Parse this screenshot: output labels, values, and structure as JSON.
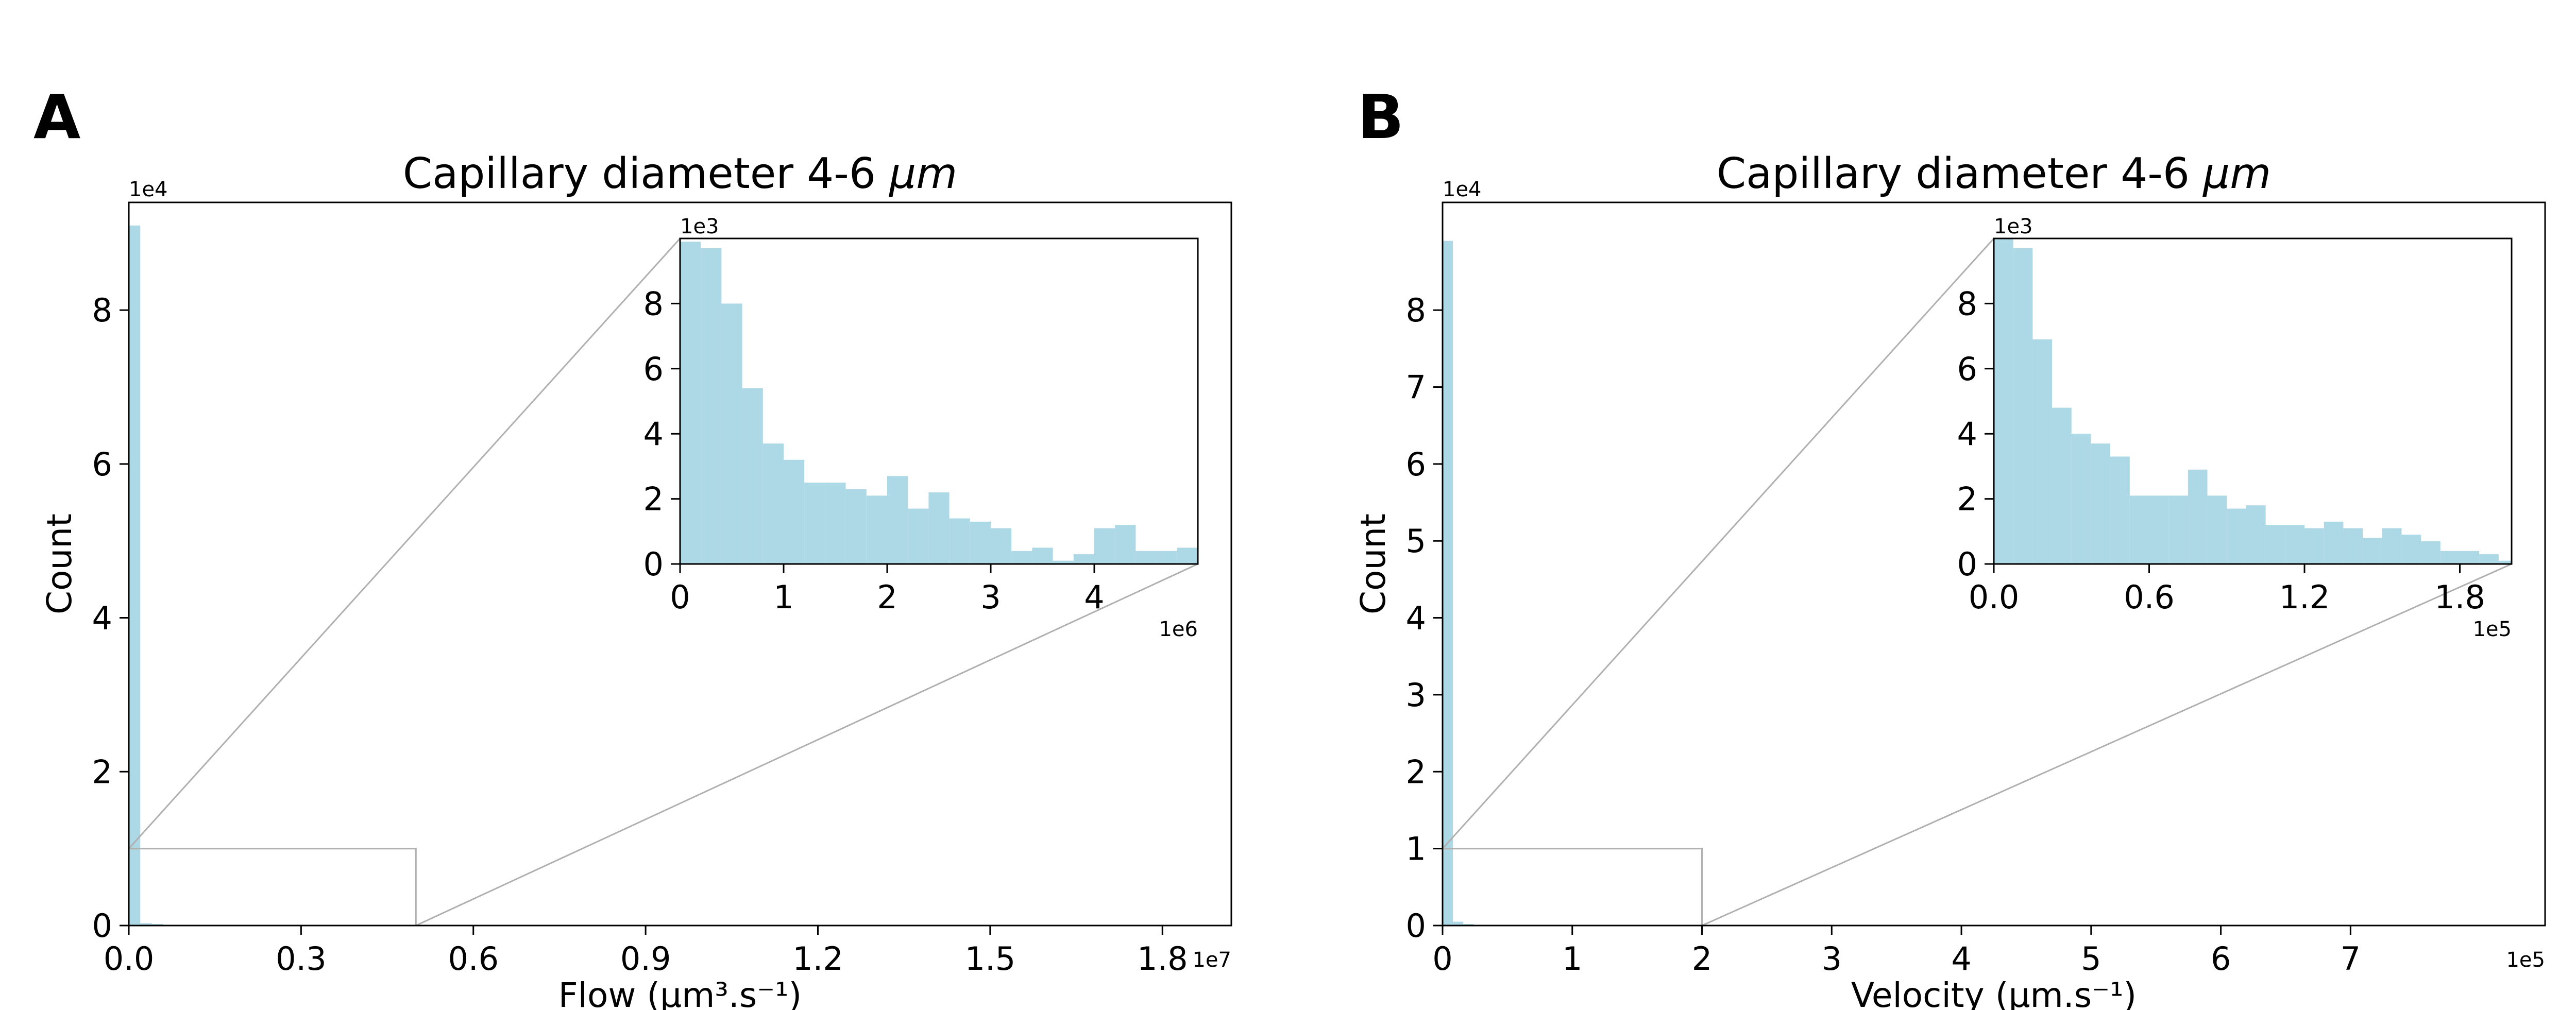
{
  "colors": {
    "bar": "#add8e6",
    "zoom_indicator": "#b0b0b0",
    "axes": "#000000"
  },
  "chart_data": [
    {
      "panel_label": "A",
      "type": "bar",
      "title": "Capillary diameter 4-6",
      "title_unit": "μm",
      "xlabel": "Flow (μm³.s⁻¹)",
      "ylabel": "Count",
      "x_offset_text": "1e7",
      "y_offset_text": "1e4",
      "xlim": [
        0,
        1.92
      ],
      "ylim": [
        0,
        9.4
      ],
      "xticks": [
        0.0,
        0.3,
        0.6,
        0.9,
        1.2,
        1.5,
        1.8
      ],
      "xtick_labels": [
        "0.0",
        "0.3",
        "0.6",
        "0.9",
        "1.2",
        "1.5",
        "1.8"
      ],
      "yticks": [
        0,
        2,
        4,
        6,
        8
      ],
      "ytick_labels": [
        "0",
        "2",
        "4",
        "6",
        "8"
      ],
      "bin_width": 0.02,
      "values": [
        9.1,
        0.03,
        0.02,
        0.01,
        0.01,
        0.01,
        0.005,
        0.005,
        0.005,
        0.005,
        0.004,
        0.003,
        0.002,
        0.002,
        0.002,
        0.001,
        0.001,
        0.001,
        0.001,
        0.001
      ],
      "zoom_region": {
        "x": [
          0,
          0.5
        ],
        "y": [
          0,
          1.0
        ]
      },
      "inset": {
        "x_offset_text": "1e6",
        "y_offset_text": "1e3",
        "xlim": [
          0,
          5.0
        ],
        "ylim": [
          0,
          10.0
        ],
        "xticks": [
          0,
          1,
          2,
          3,
          4
        ],
        "xtick_labels": [
          "0",
          "1",
          "2",
          "3",
          "4"
        ],
        "yticks": [
          0,
          2,
          4,
          6,
          8
        ],
        "ytick_labels": [
          "0",
          "2",
          "4",
          "6",
          "8"
        ],
        "bin_width": 0.2,
        "values": [
          9.9,
          9.7,
          8.0,
          5.4,
          3.7,
          3.2,
          2.5,
          2.5,
          2.3,
          2.1,
          2.7,
          1.7,
          2.2,
          1.4,
          1.3,
          1.1,
          0.4,
          0.5,
          0.1,
          0.3,
          1.1,
          1.2,
          0.4,
          0.4,
          0.5,
          0.6
        ]
      }
    },
    {
      "panel_label": "B",
      "type": "bar",
      "title": "Capillary diameter 4-6",
      "title_unit": "μm",
      "xlabel": "Velocity (μm.s⁻¹)",
      "ylabel": "Count",
      "x_offset_text": "1e5",
      "y_offset_text": "1e4",
      "xlim": [
        0,
        8.5
      ],
      "ylim": [
        0,
        9.4
      ],
      "xticks": [
        0,
        1,
        2,
        3,
        4,
        5,
        6,
        7
      ],
      "xtick_labels": [
        "0",
        "1",
        "2",
        "3",
        "4",
        "5",
        "6",
        "7"
      ],
      "yticks": [
        0,
        1,
        2,
        3,
        4,
        5,
        6,
        7,
        8
      ],
      "ytick_labels": [
        "0",
        "1",
        "2",
        "3",
        "4",
        "5",
        "6",
        "7",
        "8"
      ],
      "bin_width": 0.08,
      "values": [
        8.9,
        0.05,
        0.02,
        0.01,
        0.01,
        0.01,
        0.01,
        0.01,
        0.01,
        0.005,
        0.005,
        0.005,
        0.005,
        0.004,
        0.003,
        0.003,
        0.002,
        0.002,
        0.002,
        0.001,
        0.001,
        0.001,
        0.001,
        0.001,
        0.001
      ],
      "zoom_region": {
        "x": [
          0,
          2.0
        ],
        "y": [
          0,
          1.0
        ]
      },
      "inset": {
        "x_offset_text": "1e5",
        "y_offset_text": "1e3",
        "xlim": [
          0,
          2.0
        ],
        "ylim": [
          0,
          10.0
        ],
        "xticks": [
          0.0,
          0.6,
          1.2,
          1.8
        ],
        "xtick_labels": [
          "0.0",
          "0.6",
          "1.2",
          "1.8"
        ],
        "yticks": [
          0,
          2,
          4,
          6,
          8
        ],
        "ytick_labels": [
          "0",
          "2",
          "4",
          "6",
          "8"
        ],
        "bin_width": 0.075,
        "values": [
          10.0,
          9.7,
          6.9,
          4.8,
          4.0,
          3.7,
          3.3,
          2.1,
          2.1,
          2.1,
          2.9,
          2.1,
          1.7,
          1.8,
          1.2,
          1.2,
          1.1,
          1.3,
          1.1,
          0.8,
          1.1,
          0.9,
          0.7,
          0.4,
          0.4,
          0.3,
          0.1
        ]
      }
    }
  ]
}
